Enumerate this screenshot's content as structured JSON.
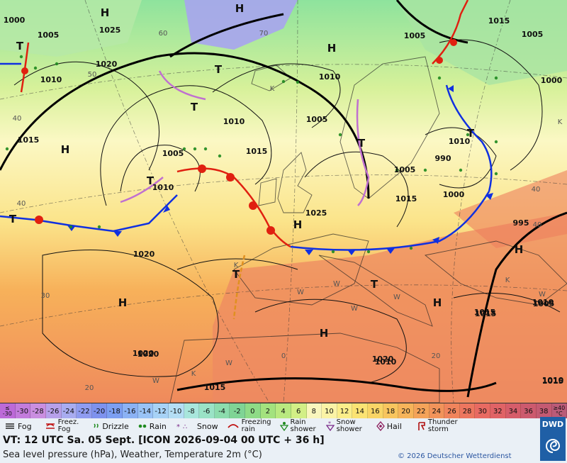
{
  "map": {
    "pressure_centers": [
      {
        "symbol": "H",
        "kind": "high"
      },
      {
        "symbol": "H",
        "kind": "high"
      },
      {
        "symbol": "H",
        "kind": "high"
      },
      {
        "symbol": "H",
        "kind": "high"
      },
      {
        "symbol": "H",
        "kind": "high"
      },
      {
        "symbol": "H",
        "kind": "high"
      },
      {
        "symbol": "H",
        "kind": "high"
      },
      {
        "symbol": "H",
        "kind": "high"
      },
      {
        "symbol": "H",
        "kind": "high"
      },
      {
        "symbol": "T",
        "kind": "low"
      },
      {
        "symbol": "T",
        "kind": "low"
      },
      {
        "symbol": "T",
        "kind": "low"
      },
      {
        "symbol": "T",
        "kind": "low"
      },
      {
        "symbol": "T",
        "kind": "low"
      },
      {
        "symbol": "T",
        "kind": "low"
      },
      {
        "symbol": "T",
        "kind": "low"
      },
      {
        "symbol": "T",
        "kind": "low"
      },
      {
        "symbol": "T",
        "kind": "low"
      }
    ],
    "isobar_labels": [
      "1000",
      "1005",
      "1025",
      "1020",
      "1010",
      "1015",
      "1020",
      "1005",
      "1010",
      "1005",
      "1010",
      "1015",
      "1005",
      "1010",
      "1015",
      "1005",
      "1000",
      "1005",
      "1000",
      "1015",
      "995",
      "990",
      "1010",
      "1005",
      "1025",
      "1015",
      "1020",
      "1015",
      "1010",
      "1015",
      "1020",
      "1020",
      "1010",
      "1015",
      "1010"
    ],
    "grid_labels": [
      "60",
      "70",
      "50",
      "40",
      "40",
      "30",
      "20",
      "0",
      "20",
      "40",
      "40",
      "K",
      "K",
      "K",
      "K",
      "K",
      "W",
      "W",
      "W",
      "W",
      "W",
      "W",
      "W"
    ]
  },
  "temperature_scale": {
    "low_edge": {
      "top": "≤",
      "bottom": "-30"
    },
    "values": [
      "-30",
      "-28",
      "-26",
      "-24",
      "-22",
      "-20",
      "-18",
      "-16",
      "-14",
      "-12",
      "-10",
      "-8",
      "-6",
      "-4",
      "-2",
      "0",
      "2",
      "4",
      "6",
      "8",
      "10",
      "12",
      "14",
      "16",
      "18",
      "20",
      "22",
      "24",
      "26",
      "28",
      "30",
      "32",
      "34",
      "36",
      "38"
    ],
    "high_edge": {
      "top": "≥40",
      "bottom": "°C"
    },
    "colors": [
      "#bc6ad8",
      "#c37cdc",
      "#ca8ee0",
      "#b7a0ea",
      "#a8acf0",
      "#8f9cf0",
      "#7e92ee",
      "#7c9ff2",
      "#8bb2f4",
      "#99c3f6",
      "#a7d2f6",
      "#b4def4",
      "#a8e6dc",
      "#9ae3c6",
      "#8cdcad",
      "#7fd495",
      "#8edb86",
      "#a3e27e",
      "#b9e97f",
      "#d2ef86",
      "#f9f6bd",
      "#fbf3a6",
      "#fbee8a",
      "#fbe373",
      "#f9d566",
      "#f8c55e",
      "#f6b45a",
      "#f4a359",
      "#f2935a",
      "#f0845c",
      "#ed765f",
      "#e86a62",
      "#e06366",
      "#d65d6a",
      "#cc5a6e",
      "#c45a72",
      "#bb5b78"
    ]
  },
  "legend": {
    "fog": "Fog",
    "freezing_fog": {
      "line1": "Freez.",
      "line2": "Fog"
    },
    "drizzle": "Drizzle",
    "rain": "Rain",
    "snow": "Snow",
    "freezing_rain": {
      "line1": "Freezing",
      "line2": "rain"
    },
    "rain_shower": {
      "line1": "Rain",
      "line2": "shower"
    },
    "snow_shower": {
      "line1": "Snow",
      "line2": "shower"
    },
    "hail": "Hail",
    "thunderstorm": {
      "line1": "Thunder",
      "line2": "storm"
    }
  },
  "info": {
    "valid_time": "VT: 12 UTC Sa.   05 Sept. [ICON 2026-09-04  00 UTC + 36 h]",
    "description": "Sea level pressure (hPa), Weather, Temperature 2m (°C)",
    "copyright": "© 2026 Deutscher Wetterdienst",
    "logo_text": "DWD"
  },
  "colors": {
    "cold_front": "#1030e0",
    "warm_front": "#e02010",
    "occlusion": "#c070d0",
    "trough": "#e09020",
    "precip_green": "#1f8a1f",
    "brand_blue": "#1f5fa6"
  }
}
